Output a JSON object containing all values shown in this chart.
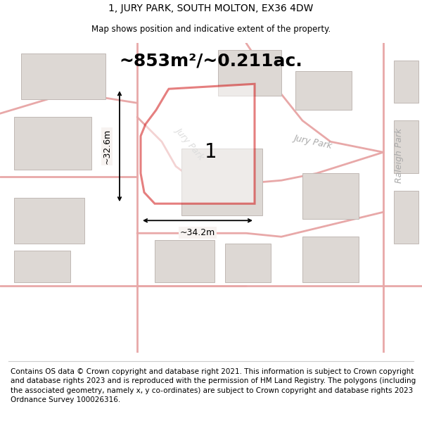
{
  "title": "1, JURY PARK, SOUTH MOLTON, EX36 4DW",
  "subtitle": "Map shows position and indicative extent of the property.",
  "area_text": "~853m²/~0.211ac.",
  "dim1_text": "~32.6m",
  "dim2_text": "~34.2m",
  "label_1": "1",
  "road_label_jury_upper": "Jury Park",
  "road_label_raleigh": "Raleigh Park",
  "road_label_jury_lower": "Jury Park",
  "footer": "Contains OS data © Crown copyright and database right 2021. This information is subject to Crown copyright and database rights 2023 and is reproduced with the permission of HM Land Registry. The polygons (including the associated geometry, namely x, y co-ordinates) are subject to Crown copyright and database rights 2023 Ordnance Survey 100026316.",
  "map_bg": "#f7f3f1",
  "road_color": "#e8a8a8",
  "highlight_color": "#cc0000",
  "building_color": "#ddd8d4",
  "building_edge": "#c0b8b4",
  "title_fontsize": 10,
  "subtitle_fontsize": 8.5,
  "area_fontsize": 18,
  "dim_fontsize": 9,
  "label_fontsize": 20,
  "road_label_fontsize": 9,
  "footer_fontsize": 7.5
}
